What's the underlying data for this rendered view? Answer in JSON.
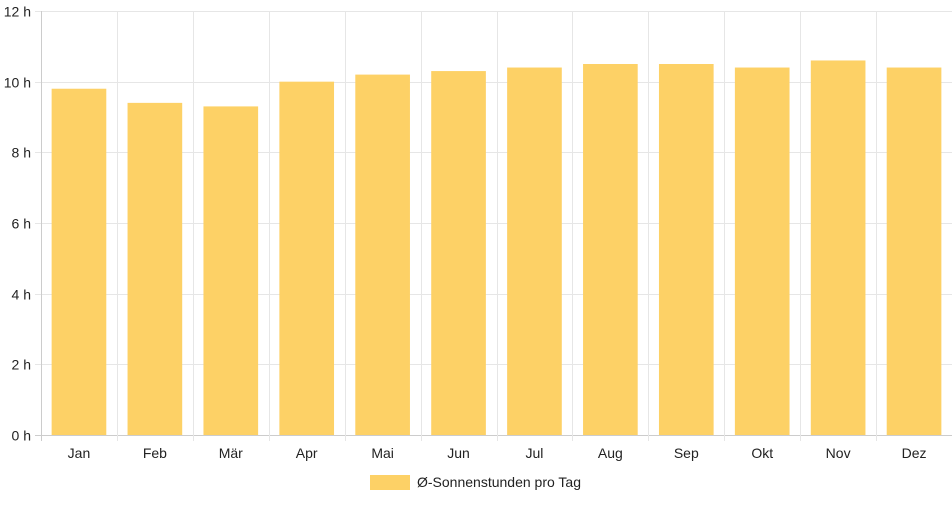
{
  "chart_data": {
    "type": "bar",
    "categories": [
      "Jan",
      "Feb",
      "Mär",
      "Apr",
      "Mai",
      "Jun",
      "Jul",
      "Aug",
      "Sep",
      "Okt",
      "Nov",
      "Dez"
    ],
    "series": [
      {
        "name": "Ø-Sonnenstunden pro Tag",
        "values": [
          9.8,
          9.4,
          9.3,
          10.0,
          10.2,
          10.3,
          10.4,
          10.5,
          10.5,
          10.4,
          10.6,
          10.4
        ],
        "color": "#fdd166"
      }
    ],
    "ylim": [
      0,
      12
    ],
    "y_ticks": [
      0,
      2,
      4,
      6,
      8,
      10,
      12
    ],
    "y_tick_labels": [
      "0 h",
      "2 h",
      "4 h",
      "6 h",
      "8 h",
      "10 h",
      "12 h"
    ],
    "grid": true,
    "legend_position": "bottom-center",
    "title": "",
    "xlabel": "",
    "ylabel": ""
  },
  "colors": {
    "bar": "#fdd166",
    "grid": "#e6e6e6",
    "axis": "#cccccc",
    "text": "#222222"
  }
}
